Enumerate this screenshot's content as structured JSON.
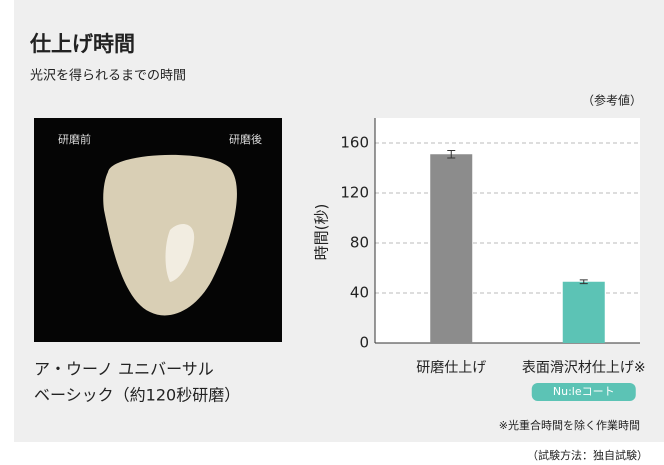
{
  "header": {
    "title": "仕上げ時間",
    "subtitle": "光沢を得られるまでの時間",
    "note": "（参考値）"
  },
  "photo": {
    "left_label": "研磨前",
    "right_label": "研磨後",
    "caption": [
      "ア・ウーノ ユニバーサル",
      "ベーシック（約120秒研磨）"
    ]
  },
  "chart_data": {
    "type": "bar",
    "y_label": "時間(秒)",
    "categories": [
      "研磨仕上げ",
      "表面滑沢材仕上げ※"
    ],
    "values": [
      151,
      49
    ],
    "errors": [
      3,
      1.5
    ],
    "colors": [
      "#8c8c8c",
      "#5cc3b5"
    ],
    "badge": "Nu:leコート",
    "ylim": [
      0,
      180
    ],
    "yticks": [
      0,
      40,
      80,
      120,
      160
    ],
    "grid": true
  },
  "footnote": "※光重合時間を除く作業時間",
  "method": "（試験方法：独自試験）"
}
